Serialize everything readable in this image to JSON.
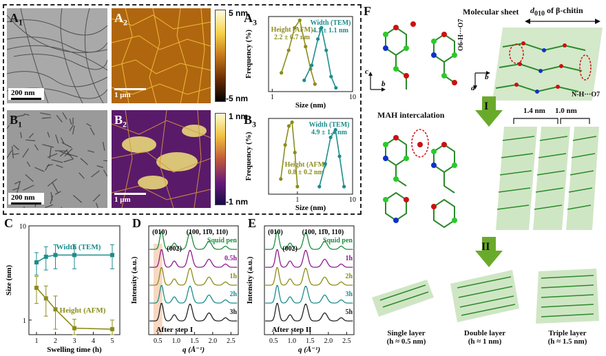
{
  "panels": {
    "A1": "A",
    "A1_sub": "1",
    "A2": "A",
    "A2_sub": "2",
    "A3": "A",
    "A3_sub": "3",
    "B1": "B",
    "B1_sub": "1",
    "B2": "B",
    "B2_sub": "2",
    "B3": "B",
    "B3_sub": "3",
    "C": "C",
    "D": "D",
    "E": "E",
    "F": "F"
  },
  "scalebars": {
    "a1": "200 nm",
    "a2": "1 μm",
    "b1": "200 nm",
    "b2": "1 μm"
  },
  "colorbars": {
    "a_top": "5 nm",
    "a_bot": "-5 nm",
    "b_top": "1 nm",
    "b_bot": "-1 nm"
  },
  "colors": {
    "olive": "#8c8c1c",
    "teal": "#1d8c8c",
    "purple": "#8c1c8c",
    "green": "#1d8c3c",
    "black": "#222222"
  },
  "chart_data": [
    {
      "id": "A3",
      "type": "line",
      "xlabel": "Size (nm)",
      "ylabel": "Frequency (%)",
      "xscale": "log",
      "xlim": [
        0.9,
        10
      ],
      "xticks": [
        "1",
        "10"
      ],
      "series": [
        {
          "name": "Height (AFM)",
          "label_line2": "2.2 ± 0.7 nm",
          "x": [
            1.3,
            1.6,
            1.9,
            2.2,
            2.6,
            3.0,
            3.4
          ],
          "y": [
            0.25,
            0.55,
            0.85,
            0.95,
            0.6,
            0.3,
            0.1
          ]
        },
        {
          "name": "Width (TEM)",
          "label_line2": "4.1 ± 1.1 nm",
          "x": [
            2.5,
            3.1,
            3.7,
            4.1,
            4.7,
            5.4,
            6.2
          ],
          "y": [
            0.15,
            0.35,
            0.7,
            0.85,
            0.55,
            0.2,
            0.05
          ]
        }
      ]
    },
    {
      "id": "B3",
      "type": "line",
      "xlabel": "Size (nm)",
      "ylabel": "Frequency (%)",
      "xscale": "log",
      "xlim": [
        0.3,
        10
      ],
      "xticks": [
        "1",
        "10"
      ],
      "series": [
        {
          "name": "Height (AFM)",
          "label_line2": "0.8 ± 0.2 nm",
          "x": [
            0.5,
            0.6,
            0.7,
            0.8,
            0.9,
            1.0
          ],
          "y": [
            0.2,
            0.65,
            0.9,
            0.95,
            0.55,
            0.1
          ]
        },
        {
          "name": "Width (TEM)",
          "label_line2": "4.9 ± 1.4 nm",
          "x": [
            2.5,
            3.2,
            4.0,
            4.9,
            5.8,
            7.0
          ],
          "y": [
            0.1,
            0.4,
            0.75,
            0.85,
            0.5,
            0.1
          ]
        }
      ]
    },
    {
      "id": "C",
      "type": "line",
      "xlabel": "Swelling time (h)",
      "ylabel": "Size (nm)",
      "xlim": [
        0.6,
        5.4
      ],
      "xticks": [
        1,
        2,
        3,
        4,
        5
      ],
      "yscale": "log",
      "ylim": [
        0.7,
        10
      ],
      "yticks": [
        "1",
        "10"
      ],
      "series": [
        {
          "name": "Width (TEM)",
          "x": [
            1,
            1.5,
            2,
            3,
            5
          ],
          "y": [
            4.1,
            4.7,
            4.9,
            4.9,
            4.9
          ],
          "err": [
            1.1,
            1.3,
            1.4,
            1.4,
            1.4
          ]
        },
        {
          "name": "Height (AFM)",
          "x": [
            1,
            1.5,
            2,
            3,
            5
          ],
          "y": [
            2.2,
            1.7,
            1.3,
            0.82,
            0.8
          ],
          "err": [
            0.7,
            0.6,
            0.5,
            0.2,
            0.2
          ]
        }
      ]
    },
    {
      "id": "D",
      "type": "line",
      "xlabel": "q (Å⁻¹)",
      "ylabel": "Intensity (a.u.)",
      "xlim": [
        0.25,
        2.7
      ],
      "xticks": [
        "0.5",
        "1.0",
        "1.5",
        "2.0",
        "2.5"
      ],
      "peak_labels": [
        "(010)",
        "(002)",
        "(100, 11̄0, 110)"
      ],
      "series_labels": [
        "Squid pen",
        "0.5h",
        "1h",
        "2h",
        "3h"
      ],
      "footer": "After step I"
    },
    {
      "id": "E",
      "type": "line",
      "xlabel": "q (Å⁻¹)",
      "ylabel": "Intensity (a.u.)",
      "xlim": [
        0.25,
        2.7
      ],
      "xticks": [
        "0.5",
        "1.0",
        "1.5",
        "2.0",
        "2.5"
      ],
      "peak_labels": [
        "(010)",
        "(002)",
        "(100, 11̄0, 110)"
      ],
      "series_labels": [
        "Squid pen",
        "1h",
        "2h",
        "3h",
        "5h"
      ],
      "footer": "After step II"
    }
  ],
  "F": {
    "molecular_sheet": "Molecular sheet",
    "d010": "d",
    "d010_sub": "010",
    "d010_rest": " of β-chitin",
    "hbond1": "O6-H···O7",
    "hbond2": "N-H···O7",
    "mah": "MAH intercalation",
    "step1": "I",
    "step2": "II",
    "w14": "1.4 nm",
    "w10": "1.0 nm",
    "axis_c": "c",
    "axis_b": "b",
    "axis_a": "a",
    "axis_b2": "b",
    "single": "Single layer",
    "single_h": "(h ≈ 0.5 nm)",
    "double": "Double layer",
    "double_h": "(h ≈ 1 nm)",
    "triple": "Triple layer",
    "triple_h": "(h ≈ 1.5 nm)"
  }
}
